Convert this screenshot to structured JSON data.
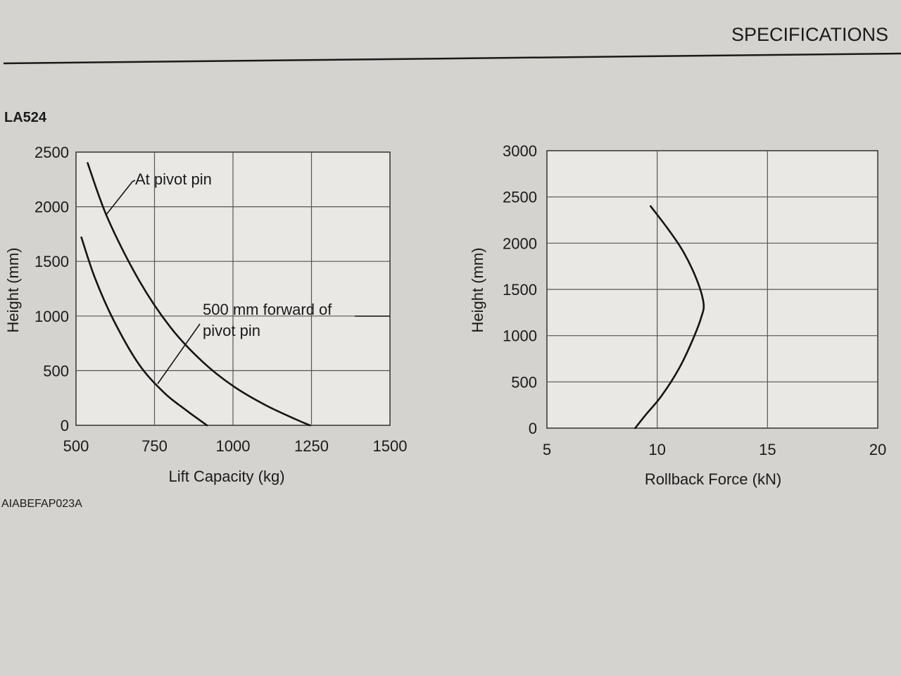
{
  "page": {
    "header": "SPECIFICATIONS",
    "model": "LA524",
    "figure_code": "AIABEFAP023A"
  },
  "chart_data": [
    {
      "type": "line",
      "title": "",
      "xlabel": "Lift Capacity (kg)",
      "ylabel": "Height (mm)",
      "xlim": [
        500,
        1500
      ],
      "ylim": [
        0,
        2500
      ],
      "xticks": [
        500,
        750,
        1000,
        1250,
        1500
      ],
      "yticks": [
        0,
        500,
        1000,
        1500,
        2000,
        2500
      ],
      "grid": true,
      "series": [
        {
          "name": "At pivot pin",
          "x": [
            537,
            600,
            700,
            800,
            900,
            1000,
            1100,
            1200,
            1245
          ],
          "y": [
            2400,
            1900,
            1330,
            900,
            590,
            360,
            190,
            55,
            0
          ]
        },
        {
          "name": "500 mm forward of pivot pin",
          "x": [
            517,
            560,
            620,
            700,
            780,
            850,
            900,
            917
          ],
          "y": [
            1720,
            1350,
            960,
            560,
            300,
            140,
            35,
            0
          ]
        }
      ],
      "annotations": [
        {
          "text": "At pivot pin"
        },
        {
          "text_lines": [
            "500 mm forward of",
            "pivot pin"
          ]
        }
      ]
    },
    {
      "type": "line",
      "title": "",
      "xlabel": "Rollback Force (kN)",
      "ylabel": "Height (mm)",
      "xlim": [
        5,
        20
      ],
      "ylim": [
        0,
        3000
      ],
      "xticks": [
        5,
        10,
        15,
        20
      ],
      "yticks": [
        0,
        500,
        1000,
        1500,
        2000,
        2500,
        3000
      ],
      "grid": true,
      "series": [
        {
          "x": [
            9.0,
            9.5,
            10.2,
            11.0,
            11.6,
            12.0,
            12.1,
            11.8,
            11.2,
            10.5,
            9.7
          ],
          "y": [
            0,
            150,
            350,
            650,
            950,
            1200,
            1350,
            1600,
            1900,
            2150,
            2400
          ]
        }
      ]
    }
  ]
}
